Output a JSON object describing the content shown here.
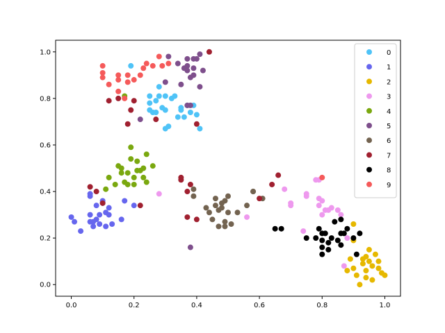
{
  "chart_data": {
    "type": "scatter",
    "title": "",
    "xlabel": "",
    "ylabel": "",
    "xlim": [
      -0.05,
      1.05
    ],
    "ylim": [
      -0.05,
      1.05
    ],
    "xticks": [
      "0.0",
      "0.2",
      "0.4",
      "0.6",
      "0.8",
      "1.0"
    ],
    "yticks": [
      "0.0",
      "0.2",
      "0.4",
      "0.6",
      "0.8",
      "1.0"
    ],
    "grid": false,
    "legend_position": "top-right",
    "series": [
      {
        "name": "0",
        "color": "#4fc3f7",
        "points": [
          [
            0.19,
            0.94
          ],
          [
            0.25,
            0.81
          ],
          [
            0.25,
            0.78
          ],
          [
            0.25,
            0.75
          ],
          [
            0.26,
            0.74
          ],
          [
            0.27,
            0.74
          ],
          [
            0.27,
            0.79
          ],
          [
            0.28,
            0.85
          ],
          [
            0.29,
            0.76
          ],
          [
            0.3,
            0.67
          ],
          [
            0.3,
            0.75
          ],
          [
            0.3,
            0.81
          ],
          [
            0.31,
            0.68
          ],
          [
            0.32,
            0.8
          ],
          [
            0.33,
            0.81
          ],
          [
            0.34,
            0.72
          ],
          [
            0.35,
            0.75
          ],
          [
            0.35,
            0.76
          ],
          [
            0.36,
            0.72
          ],
          [
            0.37,
            0.77
          ],
          [
            0.39,
            0.77
          ],
          [
            0.4,
            0.73
          ],
          [
            0.41,
            0.67
          ],
          [
            0.38,
            0.74
          ],
          [
            0.28,
            0.81
          ]
        ]
      },
      {
        "name": "1",
        "color": "#6666ee",
        "points": [
          [
            0.0,
            0.29
          ],
          [
            0.01,
            0.27
          ],
          [
            0.03,
            0.23
          ],
          [
            0.06,
            0.27
          ],
          [
            0.06,
            0.38
          ],
          [
            0.06,
            0.39
          ],
          [
            0.06,
            0.3
          ],
          [
            0.07,
            0.25
          ],
          [
            0.07,
            0.27
          ],
          [
            0.08,
            0.34
          ],
          [
            0.08,
            0.28
          ],
          [
            0.09,
            0.3
          ],
          [
            0.1,
            0.36
          ],
          [
            0.1,
            0.35
          ],
          [
            0.11,
            0.25
          ],
          [
            0.11,
            0.31
          ],
          [
            0.12,
            0.33
          ],
          [
            0.12,
            0.3
          ],
          [
            0.13,
            0.26
          ],
          [
            0.16,
            0.28
          ],
          [
            0.17,
            0.36
          ],
          [
            0.2,
            0.34
          ],
          [
            0.09,
            0.26
          ]
        ]
      },
      {
        "name": "2",
        "color": "#e6b800",
        "points": [
          [
            0.88,
            0.06
          ],
          [
            0.89,
            0.11
          ],
          [
            0.9,
            0.07
          ],
          [
            0.9,
            0.19
          ],
          [
            0.9,
            0.26
          ],
          [
            0.91,
            0.04
          ],
          [
            0.92,
            0.0
          ],
          [
            0.93,
            0.09
          ],
          [
            0.94,
            0.03
          ],
          [
            0.94,
            0.06
          ],
          [
            0.94,
            0.12
          ],
          [
            0.95,
            0.1
          ],
          [
            0.95,
            0.15
          ],
          [
            0.96,
            0.02
          ],
          [
            0.96,
            0.08
          ],
          [
            0.97,
            0.13
          ],
          [
            0.98,
            0.07
          ],
          [
            0.98,
            0.1
          ],
          [
            0.99,
            0.05
          ],
          [
            1.0,
            0.04
          ],
          [
            0.93,
            0.11
          ]
        ]
      },
      {
        "name": "3",
        "color": "#ee99ee",
        "points": [
          [
            0.28,
            0.39
          ],
          [
            0.56,
            0.29
          ],
          [
            0.68,
            0.41
          ],
          [
            0.7,
            0.35
          ],
          [
            0.7,
            0.34
          ],
          [
            0.74,
            0.23
          ],
          [
            0.75,
            0.38
          ],
          [
            0.75,
            0.39
          ],
          [
            0.78,
            0.45
          ],
          [
            0.79,
            0.45
          ],
          [
            0.79,
            0.34
          ],
          [
            0.79,
            0.37
          ],
          [
            0.8,
            0.36
          ],
          [
            0.8,
            0.3
          ],
          [
            0.81,
            0.32
          ],
          [
            0.82,
            0.32
          ],
          [
            0.83,
            0.33
          ],
          [
            0.85,
            0.32
          ],
          [
            0.86,
            0.3
          ],
          [
            0.87,
            0.08
          ],
          [
            0.88,
            0.2
          ]
        ]
      },
      {
        "name": "4",
        "color": "#7aa80f",
        "points": [
          [
            0.11,
            0.41
          ],
          [
            0.12,
            0.46
          ],
          [
            0.14,
            0.43
          ],
          [
            0.15,
            0.51
          ],
          [
            0.16,
            0.48
          ],
          [
            0.16,
            0.5
          ],
          [
            0.17,
            0.81
          ],
          [
            0.17,
            0.44
          ],
          [
            0.18,
            0.48
          ],
          [
            0.18,
            0.43
          ],
          [
            0.19,
            0.54
          ],
          [
            0.19,
            0.59
          ],
          [
            0.2,
            0.46
          ],
          [
            0.2,
            0.43
          ],
          [
            0.21,
            0.53
          ],
          [
            0.21,
            0.49
          ],
          [
            0.22,
            0.49
          ],
          [
            0.23,
            0.46
          ],
          [
            0.23,
            0.5
          ],
          [
            0.24,
            0.44
          ],
          [
            0.24,
            0.56
          ],
          [
            0.26,
            0.51
          ]
        ]
      },
      {
        "name": "5",
        "color": "#7e4f8c",
        "points": [
          [
            0.22,
            0.71
          ],
          [
            0.3,
            0.87
          ],
          [
            0.31,
            0.98
          ],
          [
            0.34,
            0.95
          ],
          [
            0.35,
            0.86
          ],
          [
            0.36,
            0.93
          ],
          [
            0.37,
            0.97
          ],
          [
            0.37,
            0.92
          ],
          [
            0.37,
            0.94
          ],
          [
            0.37,
            0.77
          ],
          [
            0.38,
            0.89
          ],
          [
            0.38,
            0.77
          ],
          [
            0.39,
            0.97
          ],
          [
            0.39,
            0.9
          ],
          [
            0.39,
            0.93
          ],
          [
            0.4,
            0.97
          ],
          [
            0.41,
            0.99
          ],
          [
            0.41,
            0.85
          ],
          [
            0.42,
            0.92
          ],
          [
            0.38,
            0.16
          ]
        ]
      },
      {
        "name": "6",
        "color": "#736350",
        "points": [
          [
            0.39,
            0.41
          ],
          [
            0.39,
            0.38
          ],
          [
            0.43,
            0.33
          ],
          [
            0.44,
            0.31
          ],
          [
            0.45,
            0.28
          ],
          [
            0.46,
            0.37
          ],
          [
            0.46,
            0.34
          ],
          [
            0.47,
            0.25
          ],
          [
            0.47,
            0.32
          ],
          [
            0.48,
            0.35
          ],
          [
            0.48,
            0.33
          ],
          [
            0.49,
            0.25
          ],
          [
            0.49,
            0.36
          ],
          [
            0.49,
            0.27
          ],
          [
            0.5,
            0.38
          ],
          [
            0.5,
            0.31
          ],
          [
            0.51,
            0.26
          ],
          [
            0.53,
            0.31
          ],
          [
            0.56,
            0.34
          ],
          [
            0.58,
            0.4
          ],
          [
            0.58,
            0.4
          ],
          [
            0.61,
            0.37
          ]
        ]
      },
      {
        "name": "7",
        "color": "#a02030",
        "points": [
          [
            0.06,
            0.42
          ],
          [
            0.08,
            0.4
          ],
          [
            0.1,
            0.35
          ],
          [
            0.12,
            0.79
          ],
          [
            0.15,
            0.8
          ],
          [
            0.18,
            0.69
          ],
          [
            0.19,
            0.75
          ],
          [
            0.22,
            0.34
          ],
          [
            0.27,
            0.71
          ],
          [
            0.35,
            0.46
          ],
          [
            0.35,
            0.45
          ],
          [
            0.37,
            0.29
          ],
          [
            0.37,
            0.4
          ],
          [
            0.38,
            0.43
          ],
          [
            0.4,
            0.69
          ],
          [
            0.4,
            0.28
          ],
          [
            0.44,
            1.0
          ],
          [
            0.6,
            0.37
          ],
          [
            0.64,
            0.43
          ],
          [
            0.66,
            0.47
          ],
          [
            0.2,
            0.79
          ]
        ]
      },
      {
        "name": "8",
        "color": "#000000",
        "points": [
          [
            0.65,
            0.24
          ],
          [
            0.67,
            0.24
          ],
          [
            0.75,
            0.2
          ],
          [
            0.78,
            0.2
          ],
          [
            0.79,
            0.24
          ],
          [
            0.8,
            0.22
          ],
          [
            0.8,
            0.19
          ],
          [
            0.8,
            0.16
          ],
          [
            0.8,
            0.13
          ],
          [
            0.81,
            0.22
          ],
          [
            0.82,
            0.15
          ],
          [
            0.82,
            0.18
          ],
          [
            0.83,
            0.2
          ],
          [
            0.84,
            0.27
          ],
          [
            0.85,
            0.19
          ],
          [
            0.86,
            0.28
          ],
          [
            0.86,
            0.22
          ],
          [
            0.86,
            0.17
          ],
          [
            0.87,
            0.22
          ],
          [
            0.88,
            0.24
          ],
          [
            0.9,
            0.2
          ],
          [
            0.91,
            0.13
          ],
          [
            0.92,
            0.22
          ]
        ]
      },
      {
        "name": "9",
        "color": "#f55a5a",
        "points": [
          [
            0.1,
            0.89
          ],
          [
            0.1,
            0.91
          ],
          [
            0.1,
            0.94
          ],
          [
            0.12,
            0.86
          ],
          [
            0.15,
            0.83
          ],
          [
            0.15,
            0.88
          ],
          [
            0.15,
            0.9
          ],
          [
            0.17,
            0.8
          ],
          [
            0.18,
            0.87
          ],
          [
            0.18,
            0.9
          ],
          [
            0.2,
            0.88
          ],
          [
            0.22,
            0.9
          ],
          [
            0.23,
            0.93
          ],
          [
            0.24,
            0.95
          ],
          [
            0.26,
            0.94
          ],
          [
            0.28,
            0.98
          ],
          [
            0.29,
            0.94
          ],
          [
            0.31,
            0.95
          ],
          [
            0.8,
            0.46
          ]
        ]
      }
    ]
  }
}
